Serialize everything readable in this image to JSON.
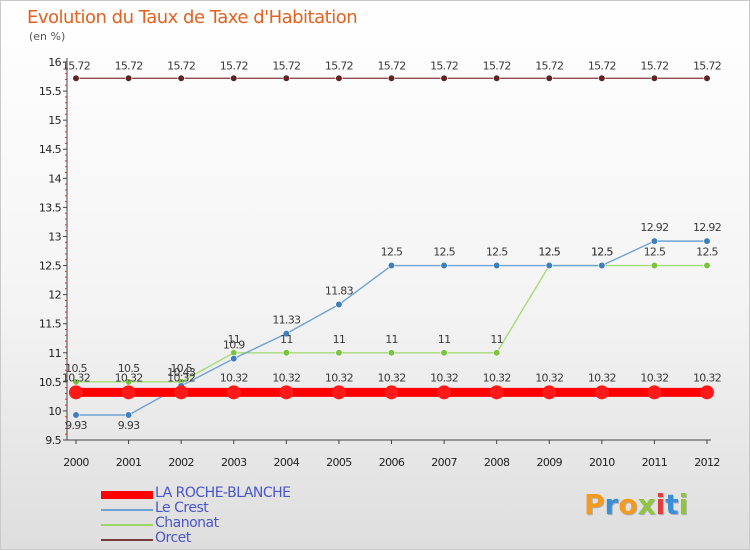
{
  "title": "Evolution du Taux de Taxe d'Habitation",
  "subtitle": "(en %)",
  "brand": {
    "text": "Proxiti",
    "colors": [
      "#f39a1f",
      "#3b8fd6",
      "#f39a1f",
      "#8cc63f",
      "#e23b3b",
      "#3b8fd6",
      "#8cc63f"
    ]
  },
  "chart_data": {
    "type": "line",
    "x": [
      "2000",
      "2001",
      "2002",
      "2003",
      "2004",
      "2005",
      "2006",
      "2007",
      "2008",
      "2009",
      "2010",
      "2011",
      "2012"
    ],
    "ylim": [
      9.5,
      16
    ],
    "yticks": [
      "9.5",
      "10",
      "10.5",
      "11",
      "11.5",
      "12",
      "12.5",
      "13",
      "13.5",
      "14",
      "14.5",
      "15",
      "15.5",
      "16"
    ],
    "grid": false,
    "legend": "bottom-left",
    "series": [
      {
        "name": "LA ROCHE-BLANCHE",
        "color": "#ff0000",
        "values": [
          10.32,
          10.32,
          10.32,
          10.32,
          10.32,
          10.32,
          10.32,
          10.32,
          10.32,
          10.32,
          10.32,
          10.32,
          10.32
        ],
        "labels": [
          "10.32",
          "10.32",
          "10.32",
          "10.32",
          "10.32",
          "10.32",
          "10.32",
          "10.32",
          "10.32",
          "10.32",
          "10.32",
          "10.32",
          "10.32"
        ]
      },
      {
        "name": "Le Crest",
        "color": "#6fa3d3",
        "values": [
          9.93,
          9.93,
          10.43,
          10.9,
          11.33,
          11.83,
          12.5,
          12.5,
          12.5,
          12.5,
          12.5,
          12.92,
          12.92
        ],
        "labels": [
          "9.93",
          "9.93",
          "10.43",
          "10.9",
          "11.33",
          "11.83",
          "12.5",
          "12.5",
          "12.5",
          "12.5",
          "12.5",
          "12.92",
          "12.92"
        ]
      },
      {
        "name": "Chanonat",
        "color": "#9bd567",
        "values": [
          10.5,
          10.5,
          10.5,
          11,
          11,
          11,
          11,
          11,
          11,
          12.5,
          12.5,
          12.5,
          12.5
        ],
        "labels": [
          "10.5",
          "10.5",
          "10.5",
          "11",
          "11",
          "11",
          "11",
          "11",
          "11",
          "12.5",
          "12.5",
          "12.5",
          "12.5"
        ]
      },
      {
        "name": "Orcet",
        "color": "#7a3a3a",
        "values": [
          15.72,
          15.72,
          15.72,
          15.72,
          15.72,
          15.72,
          15.72,
          15.72,
          15.72,
          15.72,
          15.72,
          15.72,
          15.72
        ],
        "labels": [
          "15.72",
          "15.72",
          "15.72",
          "15.72",
          "15.72",
          "15.72",
          "15.72",
          "15.72",
          "15.72",
          "15.72",
          "15.72",
          "15.72",
          "15.72"
        ]
      }
    ]
  }
}
